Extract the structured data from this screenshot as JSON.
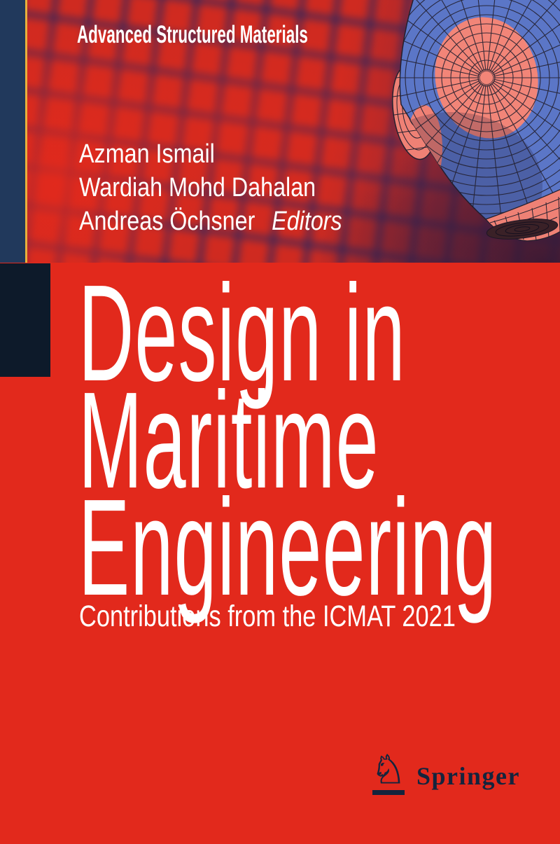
{
  "series": {
    "label": "Advanced Structured Materials"
  },
  "editors": {
    "names": [
      "Azman Ismail",
      "Wardiah Mohd Dahalan",
      "Andreas Öchsner"
    ],
    "role_label": "Editors"
  },
  "title": {
    "lines": [
      "Design in",
      "Maritime",
      "Engineering"
    ]
  },
  "subtitle": "Contributions from the ICMAT 2021",
  "publisher": {
    "name": "Springer",
    "logo_glyph": "♘"
  },
  "colors": {
    "cover_red": "#e2291c",
    "checker_gap_violet": "#2d265c",
    "sidebar_navy": "#21395c",
    "sidebar_gold": "#e7b13c",
    "dark_block_navy": "#0d1a2a",
    "mesh_blue": "#5b76c7",
    "mesh_salmon": "#ef8175",
    "mesh_line": "#23202f",
    "logo_navy": "#14243d",
    "text_white": "#ffffff"
  }
}
